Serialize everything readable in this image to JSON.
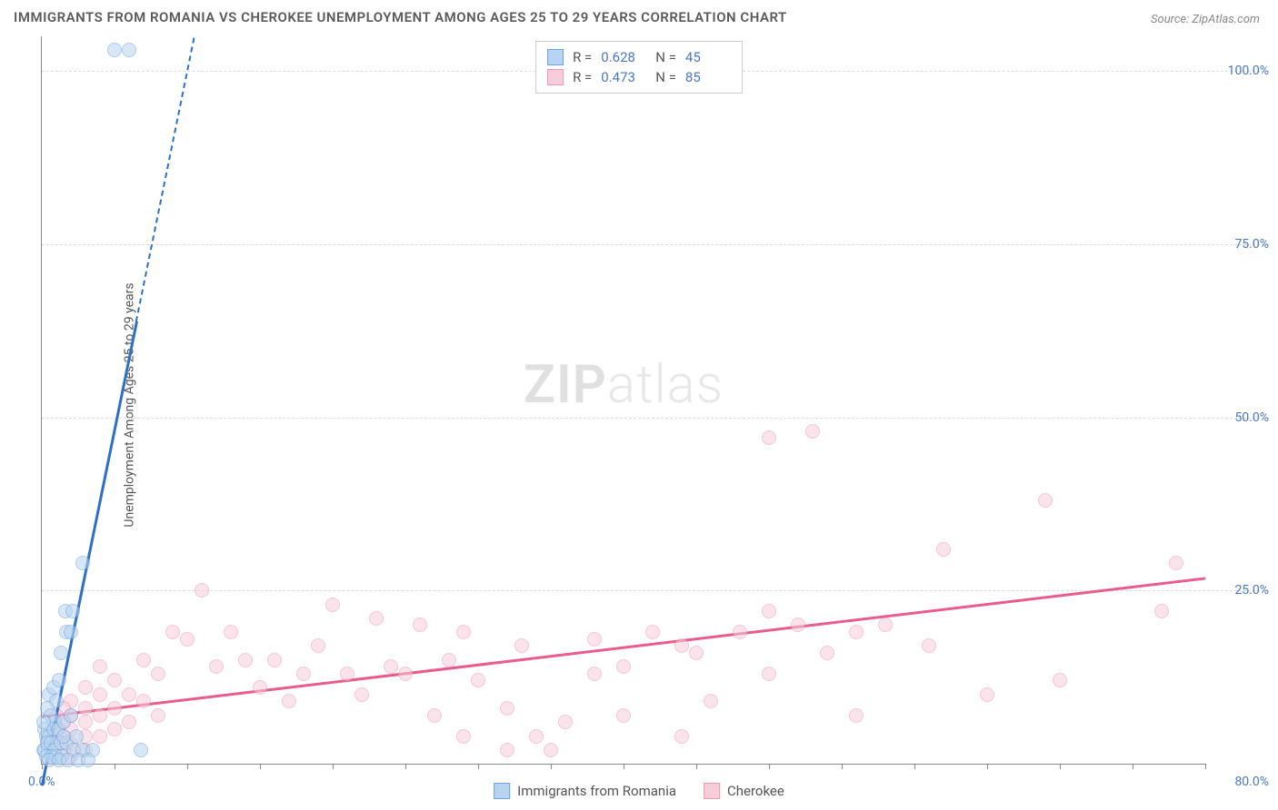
{
  "title": "IMMIGRANTS FROM ROMANIA VS CHEROKEE UNEMPLOYMENT AMONG AGES 25 TO 29 YEARS CORRELATION CHART",
  "source": "Source: ZipAtlas.com",
  "ylabel": "Unemployment Among Ages 25 to 29 years",
  "watermark_bold": "ZIP",
  "watermark_light": "atlas",
  "chart": {
    "type": "scatter",
    "xlim": [
      0,
      80
    ],
    "ylim": [
      0,
      105
    ],
    "x_tick_start": "0.0%",
    "x_tick_end": "80.0%",
    "x_tick_positions": [
      0,
      5,
      10,
      15,
      20,
      25,
      30,
      35,
      40,
      45,
      50,
      55,
      60,
      65,
      70,
      75,
      80
    ],
    "y_ticks": [
      {
        "v": 25,
        "label": "25.0%"
      },
      {
        "v": 50,
        "label": "50.0%"
      },
      {
        "v": 75,
        "label": "75.0%"
      },
      {
        "v": 100,
        "label": "100.0%"
      }
    ],
    "background_color": "#ffffff",
    "grid_color": "#dddddd",
    "axis_color": "#888888",
    "tick_label_color": "#4a78c4",
    "marker_radius": 8,
    "marker_opacity": 0.55
  },
  "series": [
    {
      "name": "Immigrants from Romania",
      "color_fill": "#b8d4f0",
      "color_stroke": "#6ba3e0",
      "line_color": "#2e6fc7",
      "R": "0.628",
      "N": "45",
      "trend": {
        "x1": 0,
        "y1": -3,
        "x2": 10.5,
        "y2": 105,
        "solid_until_y": 64
      },
      "points": [
        [
          5.0,
          103
        ],
        [
          6.0,
          103
        ],
        [
          2.8,
          29
        ],
        [
          1.6,
          22
        ],
        [
          2.1,
          22
        ],
        [
          1.7,
          19
        ],
        [
          2.0,
          19
        ],
        [
          1.3,
          16
        ],
        [
          0.5,
          10
        ],
        [
          0.8,
          11
        ],
        [
          1.2,
          12
        ],
        [
          1.0,
          9
        ],
        [
          0.4,
          8
        ],
        [
          0.6,
          7
        ],
        [
          0.9,
          6
        ],
        [
          0.2,
          5
        ],
        [
          0.3,
          4
        ],
        [
          0.5,
          4
        ],
        [
          0.8,
          5
        ],
        [
          1.1,
          5
        ],
        [
          1.5,
          6
        ],
        [
          2.0,
          7
        ],
        [
          0.1,
          2
        ],
        [
          0.2,
          2
        ],
        [
          0.4,
          3
        ],
        [
          0.6,
          3
        ],
        [
          0.9,
          2
        ],
        [
          1.3,
          3
        ],
        [
          1.7,
          3
        ],
        [
          0.3,
          1
        ],
        [
          0.7,
          1
        ],
        [
          1.0,
          1
        ],
        [
          1.4,
          1
        ],
        [
          2.2,
          2
        ],
        [
          2.8,
          2
        ],
        [
          3.5,
          2
        ],
        [
          0.5,
          0.5
        ],
        [
          1.2,
          0.5
        ],
        [
          1.8,
          0.5
        ],
        [
          2.5,
          0.5
        ],
        [
          3.2,
          0.5
        ],
        [
          6.8,
          2
        ],
        [
          1.5,
          4
        ],
        [
          2.4,
          4
        ],
        [
          0.1,
          6
        ]
      ]
    },
    {
      "name": "Cherokee",
      "color_fill": "#f7cdd9",
      "color_stroke": "#eb9ab3",
      "line_color": "#e85d8a",
      "R": "0.473",
      "N": "85",
      "trend": {
        "x1": 0,
        "y1": 7,
        "x2": 80,
        "y2": 27
      },
      "points": [
        [
          53,
          48
        ],
        [
          50,
          47
        ],
        [
          62,
          31
        ],
        [
          78,
          29
        ],
        [
          69,
          38
        ],
        [
          77,
          22
        ],
        [
          65,
          10
        ],
        [
          58,
          20
        ],
        [
          56,
          19
        ],
        [
          54,
          16
        ],
        [
          52,
          20
        ],
        [
          50,
          13
        ],
        [
          48,
          19
        ],
        [
          46,
          9
        ],
        [
          44,
          17
        ],
        [
          42,
          19
        ],
        [
          40,
          14
        ],
        [
          38,
          13
        ],
        [
          36,
          6
        ],
        [
          34,
          4
        ],
        [
          32,
          2
        ],
        [
          30,
          12
        ],
        [
          29,
          4
        ],
        [
          28,
          15
        ],
        [
          27,
          7
        ],
        [
          26,
          20
        ],
        [
          25,
          13
        ],
        [
          24,
          14
        ],
        [
          23,
          21
        ],
        [
          22,
          10
        ],
        [
          21,
          13
        ],
        [
          20,
          23
        ],
        [
          19,
          17
        ],
        [
          18,
          13
        ],
        [
          17,
          9
        ],
        [
          16,
          15
        ],
        [
          15,
          11
        ],
        [
          14,
          15
        ],
        [
          13,
          19
        ],
        [
          12,
          14
        ],
        [
          11,
          25
        ],
        [
          10,
          18
        ],
        [
          9,
          19
        ],
        [
          8,
          13
        ],
        [
          8,
          7
        ],
        [
          7,
          15
        ],
        [
          7,
          9
        ],
        [
          6,
          10
        ],
        [
          6,
          6
        ],
        [
          5,
          12
        ],
        [
          5,
          8
        ],
        [
          5,
          5
        ],
        [
          4,
          14
        ],
        [
          4,
          10
        ],
        [
          4,
          7
        ],
        [
          4,
          4
        ],
        [
          3,
          11
        ],
        [
          3,
          8
        ],
        [
          3,
          6
        ],
        [
          3,
          4
        ],
        [
          3,
          2
        ],
        [
          2,
          9
        ],
        [
          2,
          7
        ],
        [
          2,
          5
        ],
        [
          2,
          3
        ],
        [
          2,
          1
        ],
        [
          1.5,
          8
        ],
        [
          1.5,
          6
        ],
        [
          1.5,
          4
        ],
        [
          1.5,
          2
        ],
        [
          1,
          7
        ],
        [
          1,
          5
        ],
        [
          1,
          3
        ],
        [
          32,
          8
        ],
        [
          38,
          18
        ],
        [
          44,
          4
        ],
        [
          50,
          22
        ],
        [
          56,
          7
        ],
        [
          61,
          17
        ],
        [
          33,
          17
        ],
        [
          29,
          19
        ],
        [
          35,
          2
        ],
        [
          40,
          7
        ],
        [
          45,
          16
        ],
        [
          70,
          12
        ]
      ]
    }
  ],
  "legend": {
    "R_label": "R =",
    "N_label": "N ="
  }
}
